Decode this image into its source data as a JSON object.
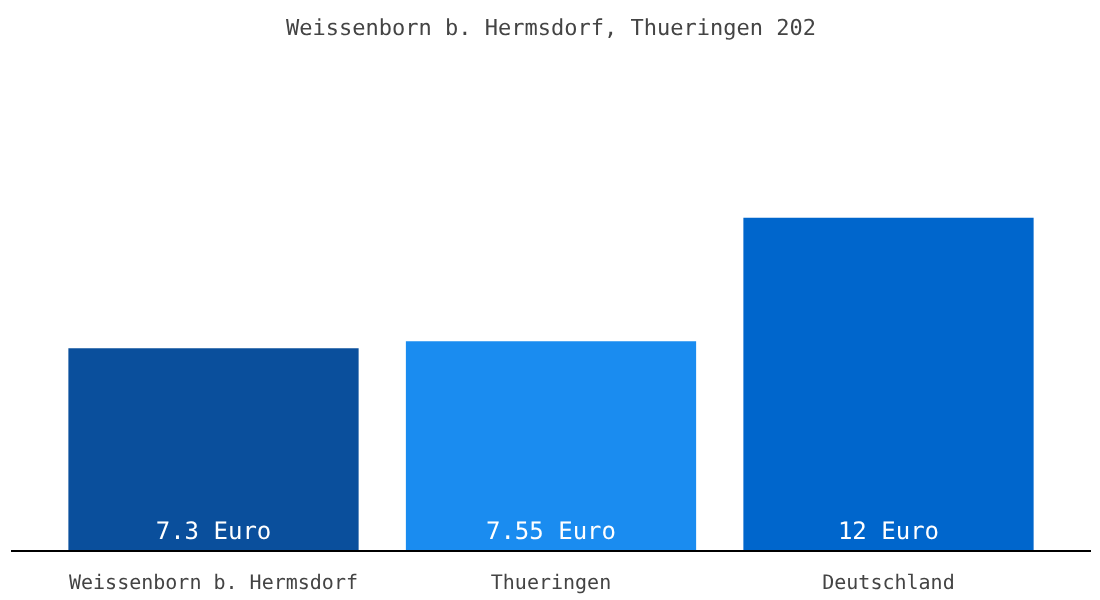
{
  "chart_data": {
    "type": "bar",
    "title": "Weissenborn b. Hermsdorf, Thueringen 202",
    "categories": [
      "Weissenborn b. Hermsdorf",
      "Thueringen",
      "Deutschland"
    ],
    "values": [
      7.3,
      7.55,
      12
    ],
    "colors": [
      "#0a4f9c",
      "#1a8cf0",
      "#0066cc"
    ],
    "value_labels": [
      "7.3 Euro",
      "7.55 Euro",
      "12 Euro"
    ]
  }
}
